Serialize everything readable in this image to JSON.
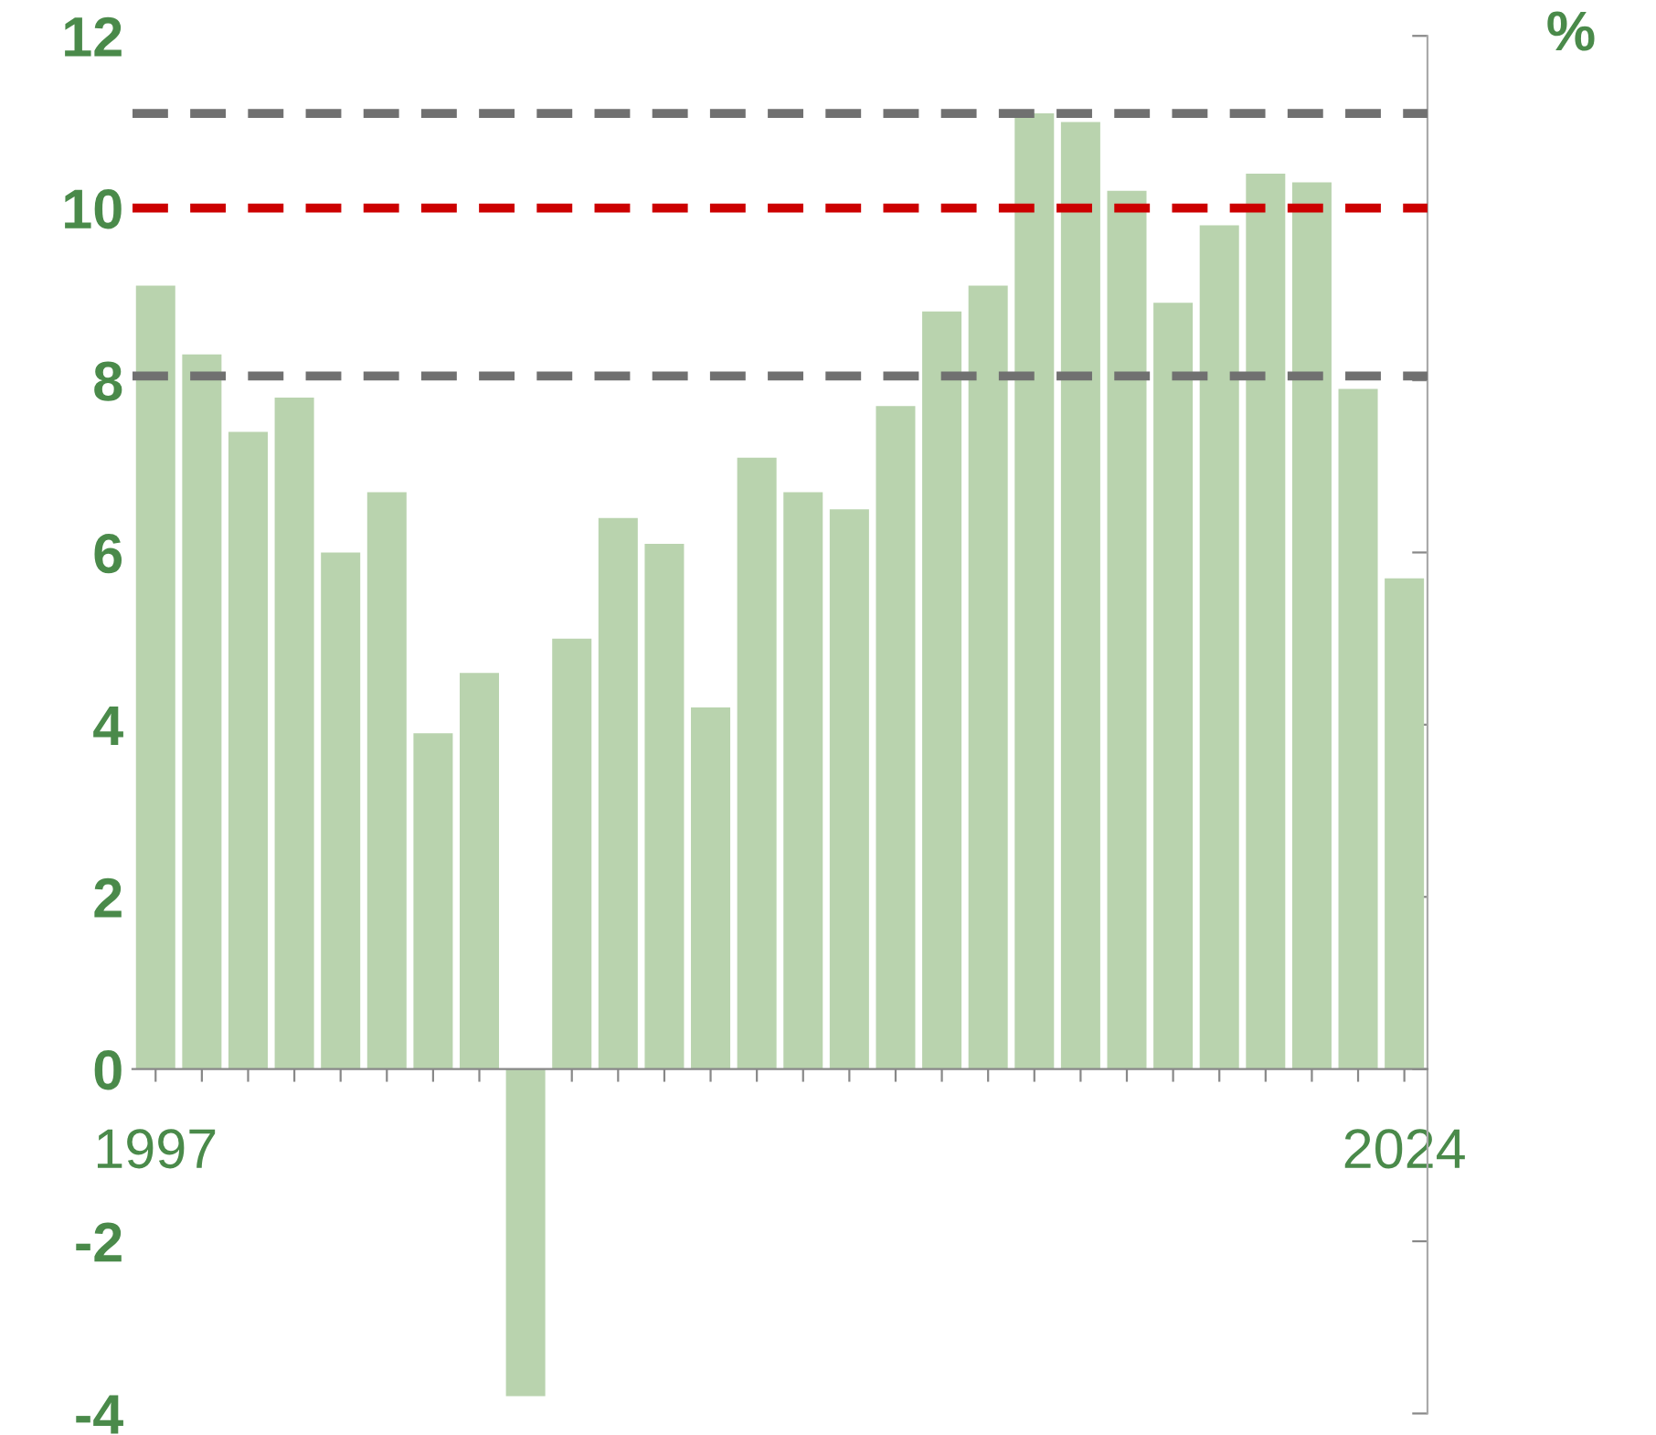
{
  "chart_data": {
    "type": "bar",
    "categories": [
      "1997",
      null,
      null,
      null,
      null,
      null,
      null,
      null,
      null,
      null,
      null,
      null,
      null,
      null,
      null,
      null,
      null,
      null,
      null,
      null,
      null,
      null,
      null,
      null,
      null,
      null,
      null,
      "2024"
    ],
    "values": [
      9.1,
      8.3,
      7.4,
      7.8,
      6.0,
      6.7,
      3.9,
      4.6,
      -3.8,
      5.0,
      6.4,
      6.1,
      4.2,
      7.1,
      6.7,
      6.5,
      7.7,
      8.8,
      9.1,
      11.1,
      11.0,
      10.2,
      8.9,
      9.8,
      10.4,
      10.3,
      7.9,
      5.7
    ],
    "color": "#b9d3ae",
    "ylabel": "%",
    "ylim": [
      -4,
      12
    ],
    "yticks": [
      -4,
      -2,
      0,
      2,
      4,
      6,
      8,
      10,
      12
    ],
    "grid": false,
    "ref_lines": [
      {
        "axis": "y",
        "value": 11.1,
        "color": "#707070",
        "line_style": "dashed"
      },
      {
        "axis": "y",
        "value": 10,
        "color": "#cc0000",
        "line_style": "dashed"
      },
      {
        "axis": "y",
        "value": 8.05,
        "color": "#707070",
        "line_style": "dashed"
      }
    ]
  }
}
